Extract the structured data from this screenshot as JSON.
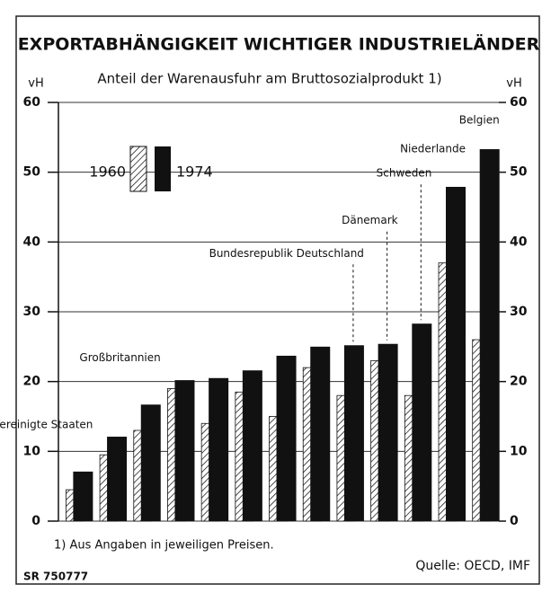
{
  "chart_data": {
    "type": "bar",
    "title": "EXPORTABHÄNGIGKEIT WICHTIGER INDUSTRIELÄNDER",
    "subtitle": "Anteil der Warenausfuhr am Bruttosozialprodukt 1)",
    "y_label": "vH",
    "y2_label": "vH",
    "categories": [
      "Vereinigte Staaten",
      null,
      "Großbritannien",
      null,
      null,
      null,
      null,
      null,
      "Bundesrepublik Deutschland",
      "Dänemark",
      "Schweden",
      "Niederlande",
      "Belgien"
    ],
    "series": [
      {
        "name": "1960",
        "color": "#ffffff",
        "pattern": "hatched",
        "values": [
          4.5,
          9.5,
          13,
          19,
          14,
          18.5,
          15,
          22,
          18,
          23,
          18,
          37,
          26
        ]
      },
      {
        "name": "1974",
        "color": "#111111",
        "values": [
          7.1,
          12.1,
          16.7,
          20.2,
          20.5,
          21.6,
          23.7,
          25.0,
          25.2,
          25.4,
          28.3,
          47.9,
          53.3
        ]
      }
    ],
    "ylim": [
      0,
      60
    ],
    "yticks": [
      0,
      10,
      20,
      30,
      40,
      50,
      60
    ],
    "y2lim": [
      0,
      60
    ],
    "y2ticks": [
      0,
      10,
      20,
      30,
      40,
      50,
      60
    ],
    "grid": true,
    "footnote": "1) Aus Angaben in jeweiligen Preisen.",
    "source": "Quelle: OECD, IMF",
    "code": "SR 750777"
  }
}
